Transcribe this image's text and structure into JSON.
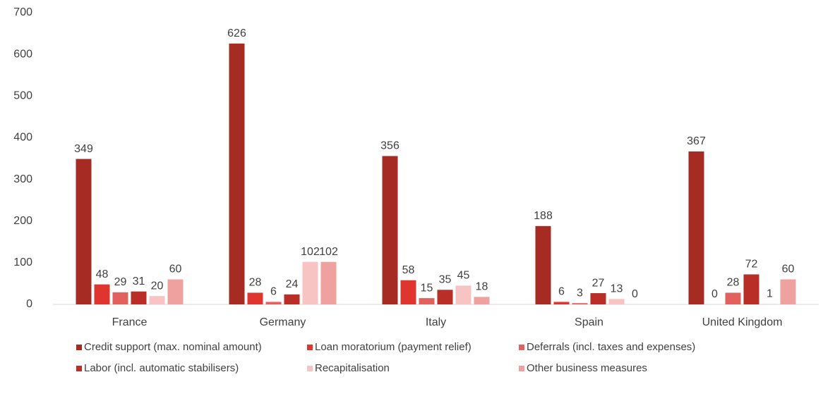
{
  "chart_data": {
    "type": "bar",
    "categories": [
      "France",
      "Germany",
      "Italy",
      "Spain",
      "United Kingdom"
    ],
    "series": [
      {
        "name": "Credit support (max. nominal amount)",
        "color": "#a62b23",
        "values": [
          349,
          626,
          356,
          188,
          367
        ]
      },
      {
        "name": "Loan moratorium (payment relief)",
        "color": "#e0342f",
        "values": [
          48,
          28,
          58,
          6,
          0
        ]
      },
      {
        "name": "Deferrals (incl. taxes and expenses)",
        "color": "#e2615d",
        "values": [
          29,
          6,
          15,
          3,
          28
        ]
      },
      {
        "name": "Labor (incl. automatic stabilisers)",
        "color": "#b92e26",
        "values": [
          31,
          24,
          35,
          27,
          72
        ]
      },
      {
        "name": "Recapitalisation",
        "color": "#f7c3c3",
        "values": [
          20,
          102,
          45,
          13,
          1
        ]
      },
      {
        "name": "Other business measures",
        "color": "#eea19f",
        "values": [
          60,
          102,
          18,
          0,
          60
        ]
      }
    ],
    "ylim": [
      0,
      700
    ],
    "yticks": [
      0,
      100,
      200,
      300,
      400,
      500,
      600,
      700
    ],
    "grid": false
  }
}
